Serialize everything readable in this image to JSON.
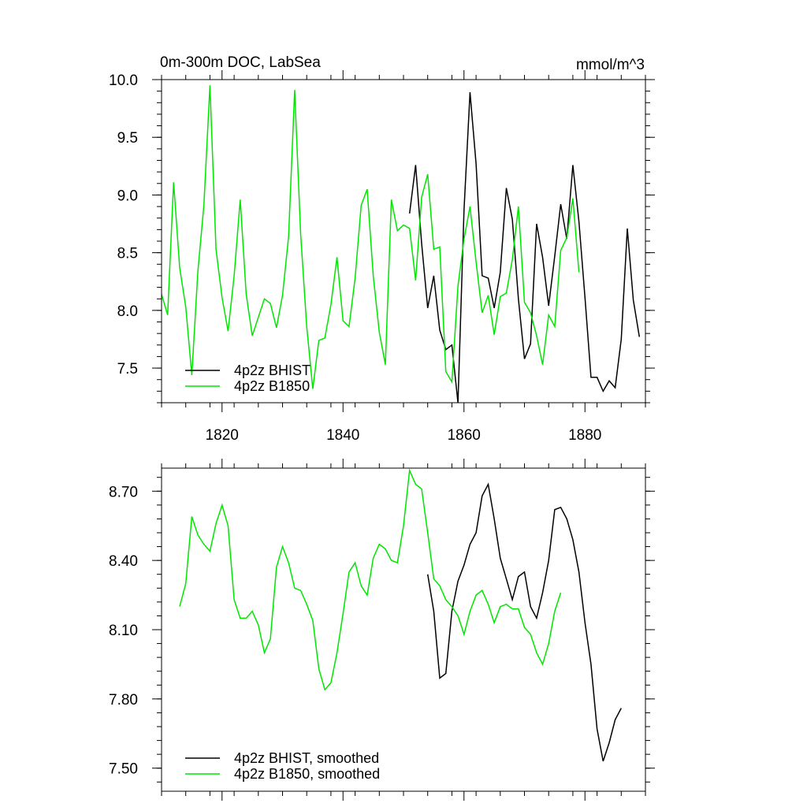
{
  "chart_data": [
    {
      "type": "line",
      "title": "0m-300m DOC, LabSea",
      "units": "mmol/m^3",
      "xlim": [
        1810,
        1890
      ],
      "ylim": [
        7.2,
        10.0
      ],
      "yticks": [
        "7.5",
        "8.0",
        "8.5",
        "9.0",
        "9.5",
        "10.0"
      ],
      "xticks": [
        "1820",
        "1840",
        "1860",
        "1880"
      ],
      "legend_position": "bottom-left",
      "grid": false,
      "series": [
        {
          "name": "4p2z BHIST",
          "color": "#000000",
          "x": [
            1851,
            1852,
            1853,
            1854,
            1855,
            1856,
            1857,
            1858,
            1859,
            1860,
            1861,
            1862,
            1863,
            1864,
            1865,
            1866,
            1867,
            1868,
            1869,
            1870,
            1871,
            1872,
            1873,
            1874,
            1875,
            1876,
            1877,
            1878,
            1879,
            1880,
            1881,
            1882,
            1883,
            1884,
            1885,
            1886,
            1887,
            1888,
            1889
          ],
          "y": [
            8.84,
            9.26,
            8.58,
            8.02,
            8.3,
            7.83,
            7.66,
            7.7,
            7.2,
            8.87,
            9.89,
            9.27,
            8.3,
            8.28,
            8.02,
            8.33,
            9.06,
            8.79,
            8.1,
            7.58,
            7.71,
            8.75,
            8.46,
            8.04,
            8.47,
            8.92,
            8.62,
            9.26,
            8.77,
            8.11,
            7.42,
            7.42,
            7.3,
            7.39,
            7.33,
            7.75,
            8.71,
            8.09,
            7.77
          ]
        },
        {
          "name": "4p2z B1850",
          "color": "#00e600",
          "x": [
            1810,
            1811,
            1812,
            1813,
            1814,
            1815,
            1816,
            1817,
            1818,
            1819,
            1820,
            1821,
            1822,
            1823,
            1824,
            1825,
            1826,
            1827,
            1828,
            1829,
            1830,
            1831,
            1832,
            1833,
            1834,
            1835,
            1836,
            1837,
            1838,
            1839,
            1840,
            1841,
            1842,
            1843,
            1844,
            1845,
            1846,
            1847,
            1848,
            1849,
            1850,
            1851,
            1852,
            1853,
            1854,
            1855,
            1856,
            1857,
            1858,
            1859,
            1860,
            1861,
            1862,
            1863,
            1864,
            1865,
            1866,
            1867,
            1868,
            1869,
            1870,
            1871,
            1872,
            1873,
            1874,
            1875,
            1876,
            1877,
            1878,
            1879
          ],
          "y": [
            8.14,
            7.96,
            9.11,
            8.37,
            8.03,
            7.44,
            8.34,
            8.91,
            9.95,
            8.53,
            8.11,
            7.82,
            8.3,
            8.96,
            8.14,
            7.78,
            7.94,
            8.1,
            8.06,
            7.85,
            8.13,
            8.64,
            9.91,
            8.66,
            7.86,
            7.32,
            7.74,
            7.76,
            8.05,
            8.46,
            7.91,
            7.86,
            8.28,
            8.91,
            9.05,
            8.3,
            7.81,
            7.53,
            8.96,
            8.69,
            8.74,
            8.71,
            8.26,
            8.98,
            9.18,
            8.53,
            8.55,
            7.47,
            7.38,
            8.21,
            8.62,
            8.9,
            8.42,
            7.98,
            8.13,
            7.79,
            8.12,
            8.15,
            8.44,
            8.9,
            8.07,
            7.98,
            7.78,
            7.53,
            7.96,
            7.86,
            8.52,
            8.63,
            8.97,
            8.33
          ]
        }
      ]
    },
    {
      "type": "line",
      "xlim": [
        1810,
        1890
      ],
      "ylim": [
        7.4,
        8.8
      ],
      "yticks": [
        "7.50",
        "7.80",
        "8.10",
        "8.40",
        "8.70"
      ],
      "legend_position": "bottom-left",
      "grid": false,
      "series": [
        {
          "name": "4p2z BHIST, smoothed",
          "color": "#000000",
          "x": [
            1854,
            1855,
            1856,
            1857,
            1858,
            1859,
            1860,
            1861,
            1862,
            1863,
            1864,
            1865,
            1866,
            1867,
            1868,
            1869,
            1870,
            1871,
            1872,
            1873,
            1874,
            1875,
            1876,
            1877,
            1878,
            1879,
            1880,
            1881,
            1882,
            1883,
            1884,
            1885,
            1886
          ],
          "y": [
            8.34,
            8.18,
            7.89,
            7.91,
            8.18,
            8.31,
            8.38,
            8.47,
            8.52,
            8.68,
            8.73,
            8.58,
            8.41,
            8.32,
            8.23,
            8.33,
            8.35,
            8.2,
            8.15,
            8.26,
            8.4,
            8.62,
            8.63,
            8.58,
            8.49,
            8.35,
            8.13,
            7.95,
            7.67,
            7.53,
            7.61,
            7.71,
            7.76
          ]
        },
        {
          "name": "4p2z B1850, smoothed",
          "color": "#00e600",
          "x": [
            1813,
            1814,
            1815,
            1816,
            1817,
            1818,
            1819,
            1820,
            1821,
            1822,
            1823,
            1824,
            1825,
            1826,
            1827,
            1828,
            1829,
            1830,
            1831,
            1832,
            1833,
            1834,
            1835,
            1836,
            1837,
            1838,
            1839,
            1840,
            1841,
            1842,
            1843,
            1844,
            1845,
            1846,
            1847,
            1848,
            1849,
            1850,
            1851,
            1852,
            1853,
            1854,
            1855,
            1856,
            1857,
            1858,
            1859,
            1860,
            1861,
            1862,
            1863,
            1864,
            1865,
            1866,
            1867,
            1868,
            1869,
            1870,
            1871,
            1872,
            1873,
            1874,
            1875,
            1876
          ],
          "y": [
            8.2,
            8.3,
            8.59,
            8.51,
            8.47,
            8.44,
            8.56,
            8.64,
            8.55,
            8.23,
            8.15,
            8.15,
            8.18,
            8.12,
            8.0,
            8.06,
            8.37,
            8.46,
            8.39,
            8.28,
            8.27,
            8.21,
            8.14,
            7.93,
            7.84,
            7.87,
            8.0,
            8.17,
            8.35,
            8.39,
            8.29,
            8.25,
            8.41,
            8.47,
            8.45,
            8.4,
            8.39,
            8.55,
            8.79,
            8.73,
            8.71,
            8.52,
            8.32,
            8.29,
            8.23,
            8.2,
            8.16,
            8.08,
            8.18,
            8.25,
            8.27,
            8.21,
            8.13,
            8.2,
            8.21,
            8.19,
            8.19,
            8.11,
            8.08,
            8.0,
            7.95,
            8.04,
            8.18,
            8.26
          ]
        }
      ]
    }
  ]
}
